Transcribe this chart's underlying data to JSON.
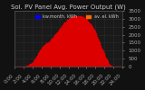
{
  "title": "Sol. PV Panel Avg. Power Output (W)",
  "legend1": "kw.month. kWh",
  "legend2": "av. el. kWh",
  "bg_color": "#111111",
  "plot_bg": "#1a1a1a",
  "bar_color": "#dd0000",
  "bar_edge": "#ff2200",
  "grid_color": "#555555",
  "text_color": "#cccccc",
  "title_color": "#cccccc",
  "ylim": [
    0,
    3500
  ],
  "yticks": [
    0,
    500,
    1000,
    1500,
    2000,
    2500,
    3000,
    3500
  ],
  "num_bars": 144,
  "bar_values": [
    0,
    0,
    0,
    0,
    0,
    0,
    0,
    0,
    0,
    0,
    0,
    0,
    5,
    10,
    20,
    35,
    50,
    70,
    90,
    110,
    130,
    160,
    190,
    220,
    260,
    310,
    370,
    440,
    520,
    600,
    680,
    760,
    840,
    920,
    1000,
    1080,
    1150,
    1210,
    1270,
    1320,
    1360,
    1400,
    1430,
    1460,
    1490,
    1520,
    1550,
    1580,
    1620,
    1680,
    1750,
    1820,
    1890,
    1950,
    2000,
    2050,
    2100,
    2150,
    2200,
    2250,
    2300,
    2370,
    2450,
    2530,
    2600,
    2660,
    2710,
    2750,
    2790,
    2830,
    2870,
    2910,
    2950,
    2990,
    3030,
    3060,
    3080,
    3100,
    3120,
    3140,
    3150,
    3160,
    3170,
    3175,
    3180,
    3182,
    3185,
    3180,
    3170,
    3160,
    3140,
    3120,
    3100,
    3080,
    3050,
    3010,
    2970,
    2920,
    2870,
    2820,
    2770,
    2720,
    2670,
    2610,
    2540,
    2460,
    2380,
    2300,
    2210,
    2110,
    2000,
    1880,
    1760,
    1640,
    1520,
    1400,
    1280,
    1160,
    1050,
    940,
    830,
    720,
    620,
    520,
    430,
    350,
    270,
    200,
    140,
    90,
    50,
    20,
    5,
    0,
    0,
    0,
    0,
    0,
    0,
    0,
    0,
    0,
    0,
    0
  ],
  "xlabel_color": "#aaaaaa",
  "ylabel_color": "#aaaaaa",
  "tick_label_size": 4,
  "title_size": 5,
  "spine_color": "#555555"
}
